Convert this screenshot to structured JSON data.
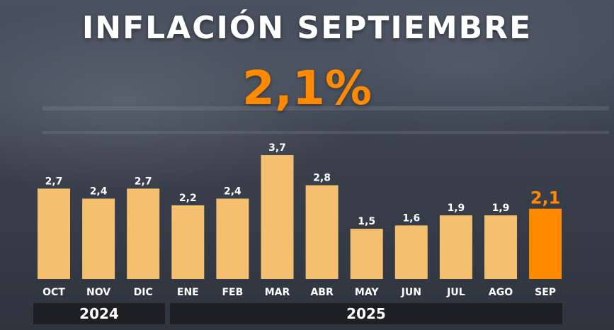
{
  "title": "INFLACIÓN SEPTIEMBRE",
  "headline_value": "2,1%",
  "colors": {
    "bar": "#f4bf6e",
    "highlight": "#ff8a00",
    "text": "#ffffff",
    "year_bg": "#1d1f24"
  },
  "chart_data": {
    "type": "bar",
    "categories": [
      "OCT",
      "NOV",
      "DIC",
      "ENE",
      "FEB",
      "MAR",
      "ABR",
      "MAY",
      "JUN",
      "JUL",
      "AGO",
      "SEP"
    ],
    "values": [
      2.7,
      2.4,
      2.7,
      2.2,
      2.4,
      3.7,
      2.8,
      1.5,
      1.6,
      1.9,
      1.9,
      2.1
    ],
    "value_labels": [
      "2,7",
      "2,4",
      "2,7",
      "2,2",
      "2,4",
      "3,7",
      "2,8",
      "1,5",
      "1,6",
      "1,9",
      "1,9",
      "2,1"
    ],
    "highlight_index": 11,
    "groups": [
      {
        "label": "2024",
        "categories": [
          "OCT",
          "NOV",
          "DIC"
        ]
      },
      {
        "label": "2025",
        "categories": [
          "ENE",
          "FEB",
          "MAR",
          "ABR",
          "MAY",
          "JUN",
          "JUL",
          "AGO",
          "SEP"
        ]
      }
    ],
    "title": "INFLACIÓN SEPTIEMBRE",
    "xlabel": "",
    "ylabel": "",
    "ylim": [
      0,
      3.7
    ],
    "grid": false,
    "legend": "none"
  }
}
